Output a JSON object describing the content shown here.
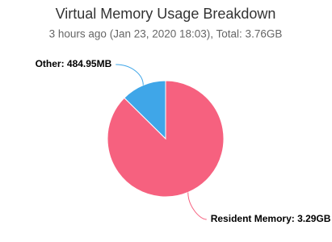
{
  "chart_data": {
    "type": "pie",
    "title": "Virtual Memory Usage Breakdown",
    "subtitle": "3 hours ago (Jan 23, 2020 18:03), Total: 3.76GB",
    "values": [
      484.95,
      3369
    ],
    "value_labels": [
      "Other: 484.95MB",
      "Resident Memory: 3.29GB"
    ],
    "colors": [
      "#3fa6e8",
      "#f6617f"
    ]
  }
}
